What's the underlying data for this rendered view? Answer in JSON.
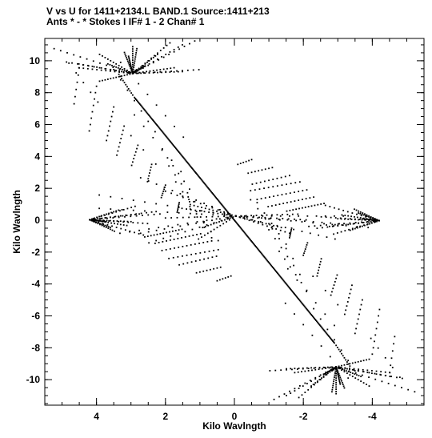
{
  "chart_data": {
    "type": "scatter",
    "title_line1": "V vs U for 1411+2134.L BAND.1   Source:1411+213",
    "title_line2": "Ants * - *     Stokes I   IF# 1 - 2   Chan# 1",
    "xlabel": "Kilo Wavlngth",
    "ylabel": "Kilo Wavlngth",
    "xlim": [
      5.5,
      -5.5
    ],
    "ylim": [
      -11.6,
      11.4
    ],
    "x_ticks": [
      4,
      2,
      0,
      -2,
      -4
    ],
    "x_tick_labels": [
      "4",
      "2",
      "0",
      "-2",
      "-4"
    ],
    "y_ticks": [
      10,
      8,
      6,
      4,
      2,
      0,
      -2,
      -4,
      -6,
      -8,
      -10
    ],
    "y_tick_labels": [
      "10",
      "8",
      "6",
      "4",
      "2",
      "0",
      "-2",
      "-4",
      "-6",
      "-8",
      "-10"
    ],
    "x_minor_step": 0.5,
    "y_minor_step": 0.5,
    "grid": false,
    "marker_color": "#000000",
    "tracks": [
      {
        "u0": -0.04,
        "v0": 0.26,
        "du": 0.17,
        "dv": -0.01,
        "n": 13
      },
      {
        "u0": -0.04,
        "v0": 0.26,
        "du": 0.11,
        "dv": 0.06,
        "n": 13
      },
      {
        "u0": -0.04,
        "v0": 0.26,
        "du": 0.08,
        "dv": -0.06,
        "n": 13
      },
      {
        "u0": -0.04,
        "v0": 0.26,
        "du": 0.33,
        "dv": 0.04,
        "n": 13
      },
      {
        "u0": -0.04,
        "v0": 0.26,
        "du": 0.23,
        "dv": 0.2,
        "n": 13
      },
      {
        "u0": -0.04,
        "v0": 0.26,
        "du": 0.21,
        "dv": -0.14,
        "n": 13
      },
      {
        "u0": -0.04,
        "v0": 0.26,
        "du": -0.25,
        "dv": -0.04,
        "n": 13
      },
      {
        "u0": -0.04,
        "v0": 0.26,
        "du": -0.17,
        "dv": -0.02,
        "n": 13
      },
      {
        "u0": -0.04,
        "v0": 0.26,
        "du": -0.11,
        "dv": -0.06,
        "n": 13
      },
      {
        "u0": -0.04,
        "v0": 0.26,
        "du": 0.17,
        "dv": 0.13,
        "n": 13
      },
      {
        "u0": -0.04,
        "v0": 0.26,
        "du": -0.13,
        "dv": -0.09,
        "n": 13
      },
      {
        "u0": -0.04,
        "v0": 0.26,
        "du": 0.13,
        "dv": 0.04,
        "n": 13
      },
      {
        "u0": -0.04,
        "v0": 0.26,
        "du": -0.15,
        "dv": 0.01,
        "n": 13
      },
      {
        "u0": -0.04,
        "v0": 0.26,
        "du": 0.33,
        "dv": 0.11,
        "n": 13
      },
      {
        "u0": -0.04,
        "v0": 0.26,
        "du": -0.32,
        "dv": -0.06,
        "n": 13
      },
      {
        "u0": -0.04,
        "v0": 0.26,
        "du": -0.26,
        "dv": 0.0,
        "n": 13
      },
      {
        "u0": -0.04,
        "v0": 0.26,
        "du": 0.23,
        "dv": -0.09,
        "n": 13
      },
      {
        "u0": -0.04,
        "v0": 0.26,
        "du": 0.09,
        "dv": -0.12,
        "n": 13
      },
      {
        "u0": -0.04,
        "v0": 0.26,
        "du": 0.28,
        "dv": -0.09,
        "n": 13
      },
      {
        "u0": -0.04,
        "v0": 0.26,
        "du": -0.24,
        "dv": -0.12,
        "n": 13
      },
      {
        "u0": 2.95,
        "v0": 9.2,
        "du": -0.03,
        "dv": 0.04,
        "n": 13
      },
      {
        "u0": 2.95,
        "v0": 9.2,
        "du": 0.13,
        "dv": 0.05,
        "n": 13
      },
      {
        "u0": 2.95,
        "v0": 9.2,
        "du": -0.01,
        "dv": 0.13,
        "n": 13
      },
      {
        "u0": 2.95,
        "v0": 9.2,
        "du": 0.08,
        "dv": -0.04,
        "n": 13
      },
      {
        "u0": 2.95,
        "v0": 9.2,
        "du": 0.06,
        "dv": 0.05,
        "n": 13
      },
      {
        "u0": 2.95,
        "v0": 9.2,
        "du": -0.06,
        "dv": 0.1,
        "n": 13
      },
      {
        "u0": 2.95,
        "v0": 9.2,
        "du": -0.12,
        "dv": 0.01,
        "n": 13
      },
      {
        "u0": 2.95,
        "v0": 9.2,
        "du": 0.0,
        "dv": 0.14,
        "n": 13
      },
      {
        "u0": 2.95,
        "v0": 9.2,
        "du": -0.1,
        "dv": 0.03,
        "n": 13
      },
      {
        "u0": 2.95,
        "v0": 9.2,
        "du": 0.16,
        "dv": 0.06,
        "n": 13
      },
      {
        "u0": 2.95,
        "v0": 9.2,
        "du": -0.01,
        "dv": 0.02,
        "n": 13
      },
      {
        "u0": 2.95,
        "v0": 9.2,
        "du": 0.02,
        "dv": 0.11,
        "n": 13
      },
      {
        "u0": 2.95,
        "v0": 9.2,
        "du": -0.16,
        "dv": 0.02,
        "n": 13
      },
      {
        "u0": 2.95,
        "v0": 9.2,
        "du": 0.01,
        "dv": 0.09,
        "n": 13
      },
      {
        "u0": 2.95,
        "v0": 9.2,
        "du": 0.08,
        "dv": 0.1,
        "n": 13
      },
      {
        "u0": 2.95,
        "v0": 9.2,
        "du": 0.19,
        "dv": 0.13,
        "n": 13
      },
      {
        "u0": 2.95,
        "v0": 9.2,
        "du": -0.15,
        "dv": 0.17,
        "n": 13
      },
      {
        "u0": 2.95,
        "v0": 9.2,
        "du": -0.09,
        "dv": 0.16,
        "n": 13
      },
      {
        "u0": 2.95,
        "v0": 9.2,
        "du": 0.13,
        "dv": 0.03,
        "n": 13
      },
      {
        "u0": 2.95,
        "v0": 9.2,
        "du": -0.12,
        "dv": 0.15,
        "n": 13
      },
      {
        "u0": -2.95,
        "v0": -9.2,
        "du": 0.03,
        "dv": -0.04,
        "n": 13
      },
      {
        "u0": -2.95,
        "v0": -9.2,
        "du": -0.13,
        "dv": -0.05,
        "n": 13
      },
      {
        "u0": -2.95,
        "v0": -9.2,
        "du": 0.01,
        "dv": -0.13,
        "n": 13
      },
      {
        "u0": -2.95,
        "v0": -9.2,
        "du": -0.08,
        "dv": 0.04,
        "n": 13
      },
      {
        "u0": -2.95,
        "v0": -9.2,
        "du": -0.06,
        "dv": -0.05,
        "n": 13
      },
      {
        "u0": -2.95,
        "v0": -9.2,
        "du": 0.06,
        "dv": -0.1,
        "n": 13
      },
      {
        "u0": -2.95,
        "v0": -9.2,
        "du": 0.12,
        "dv": -0.01,
        "n": 13
      },
      {
        "u0": -2.95,
        "v0": -9.2,
        "du": 0.0,
        "dv": -0.14,
        "n": 13
      },
      {
        "u0": -2.95,
        "v0": -9.2,
        "du": 0.1,
        "dv": -0.03,
        "n": 13
      },
      {
        "u0": -2.95,
        "v0": -9.2,
        "du": -0.16,
        "dv": -0.06,
        "n": 13
      },
      {
        "u0": -2.95,
        "v0": -9.2,
        "du": 0.01,
        "dv": -0.02,
        "n": 13
      },
      {
        "u0": -2.95,
        "v0": -9.2,
        "du": -0.02,
        "dv": -0.11,
        "n": 13
      },
      {
        "u0": -2.95,
        "v0": -9.2,
        "du": 0.16,
        "dv": -0.02,
        "n": 13
      },
      {
        "u0": -2.95,
        "v0": -9.2,
        "du": -0.01,
        "dv": -0.09,
        "n": 13
      },
      {
        "u0": -2.95,
        "v0": -9.2,
        "du": -0.08,
        "dv": -0.1,
        "n": 13
      },
      {
        "u0": -2.95,
        "v0": -9.2,
        "du": -0.19,
        "dv": -0.13,
        "n": 13
      },
      {
        "u0": -2.95,
        "v0": -9.2,
        "du": 0.15,
        "dv": -0.17,
        "n": 13
      },
      {
        "u0": -2.95,
        "v0": -9.2,
        "du": 0.09,
        "dv": -0.16,
        "n": 13
      },
      {
        "u0": -2.95,
        "v0": -9.2,
        "du": -0.13,
        "dv": -0.03,
        "n": 13
      },
      {
        "u0": -2.95,
        "v0": -9.2,
        "du": 0.12,
        "dv": -0.15,
        "n": 13
      },
      {
        "u0": 4.2,
        "v0": 0.03,
        "du": -0.1,
        "dv": -0.01,
        "n": 13
      },
      {
        "u0": 4.2,
        "v0": 0.03,
        "du": -0.06,
        "dv": -0.06,
        "n": 13
      },
      {
        "u0": 4.2,
        "v0": 0.03,
        "du": -0.12,
        "dv": 0.03,
        "n": 13
      },
      {
        "u0": 4.2,
        "v0": 0.03,
        "du": -0.05,
        "dv": -0.04,
        "n": 13
      },
      {
        "u0": 4.2,
        "v0": 0.03,
        "du": -0.14,
        "dv": -0.02,
        "n": 13
      },
      {
        "u0": 4.2,
        "v0": 0.03,
        "du": -0.11,
        "dv": 0.07,
        "n": 13
      },
      {
        "u0": 4.2,
        "v0": 0.03,
        "du": -0.17,
        "dv": 0.03,
        "n": 13
      },
      {
        "u0": 4.2,
        "v0": 0.03,
        "du": -0.09,
        "dv": -0.03,
        "n": 13
      },
      {
        "u0": 4.2,
        "v0": 0.03,
        "du": -0.13,
        "dv": -0.08,
        "n": 13
      },
      {
        "u0": 4.2,
        "v0": 0.03,
        "du": -0.07,
        "dv": 0.05,
        "n": 13
      },
      {
        "u0": 4.2,
        "v0": 0.03,
        "du": -0.15,
        "dv": 0.04,
        "n": 13
      },
      {
        "u0": 4.2,
        "v0": 0.03,
        "du": -0.04,
        "dv": -0.01,
        "n": 13
      },
      {
        "u0": -4.2,
        "v0": -0.03,
        "du": 0.1,
        "dv": 0.01,
        "n": 13
      },
      {
        "u0": -4.2,
        "v0": -0.03,
        "du": 0.06,
        "dv": 0.06,
        "n": 13
      },
      {
        "u0": -4.2,
        "v0": -0.03,
        "du": 0.12,
        "dv": -0.03,
        "n": 13
      },
      {
        "u0": -4.2,
        "v0": -0.03,
        "du": 0.05,
        "dv": 0.04,
        "n": 13
      },
      {
        "u0": -4.2,
        "v0": -0.03,
        "du": 0.14,
        "dv": 0.02,
        "n": 13
      },
      {
        "u0": -4.2,
        "v0": -0.03,
        "du": 0.11,
        "dv": -0.07,
        "n": 13
      },
      {
        "u0": -4.2,
        "v0": -0.03,
        "du": 0.17,
        "dv": -0.03,
        "n": 13
      },
      {
        "u0": -4.2,
        "v0": -0.03,
        "du": 0.09,
        "dv": 0.03,
        "n": 13
      },
      {
        "u0": -4.2,
        "v0": -0.03,
        "du": 0.13,
        "dv": 0.08,
        "n": 13
      },
      {
        "u0": -4.2,
        "v0": -0.03,
        "du": 0.07,
        "dv": -0.05,
        "n": 13
      },
      {
        "u0": -4.2,
        "v0": -0.03,
        "du": 0.15,
        "dv": -0.04,
        "n": 13
      },
      {
        "u0": -4.2,
        "v0": -0.03,
        "du": 0.04,
        "dv": 0.01,
        "n": 13
      },
      {
        "u0": 3.3,
        "v0": 9.9,
        "du": -0.26,
        "dv": -0.67,
        "n": 8
      },
      {
        "u0": 4.8,
        "v0": 9.85,
        "du": -0.21,
        "dv": -0.61,
        "n": 5
      },
      {
        "u0": 3.5,
        "v0": 9.45,
        "du": -0.2,
        "dv": -0.65,
        "n": 7
      },
      {
        "u0": 2.9,
        "v0": 6.6,
        "du": -0.27,
        "dv": -0.71,
        "n": 6
      },
      {
        "u0": 3.0,
        "v0": 5.3,
        "du": -0.36,
        "dv": -0.89,
        "n": 3
      },
      {
        "u0": 2.1,
        "v0": 4.4,
        "du": -0.16,
        "dv": -0.49,
        "n": 6
      },
      {
        "u0": 1.9,
        "v0": 3.4,
        "du": -0.18,
        "dv": -0.56,
        "n": 6
      },
      {
        "u0": 1.7,
        "v0": 2.4,
        "du": -0.2,
        "dv": -0.62,
        "n": 5
      },
      {
        "u0": 1.5,
        "v0": 1.5,
        "du": -0.21,
        "dv": -0.65,
        "n": 5
      },
      {
        "u0": 1.1,
        "v0": 0.4,
        "du": -0.21,
        "dv": -0.56,
        "n": 4
      },
      {
        "u0": -3.3,
        "v0": -9.9,
        "du": 0.26,
        "dv": 0.67,
        "n": 8
      },
      {
        "u0": -4.8,
        "v0": -9.85,
        "du": 0.21,
        "dv": 0.61,
        "n": 5
      },
      {
        "u0": -3.5,
        "v0": -9.45,
        "du": 0.2,
        "dv": 0.65,
        "n": 7
      },
      {
        "u0": -2.9,
        "v0": -6.6,
        "du": 0.27,
        "dv": 0.71,
        "n": 6
      },
      {
        "u0": -3.0,
        "v0": -5.3,
        "du": 0.36,
        "dv": 0.89,
        "n": 3
      },
      {
        "u0": -2.1,
        "v0": -4.4,
        "du": 0.16,
        "dv": 0.49,
        "n": 6
      },
      {
        "u0": -1.9,
        "v0": -3.4,
        "du": 0.18,
        "dv": 0.56,
        "n": 6
      },
      {
        "u0": -1.7,
        "v0": -2.4,
        "du": 0.2,
        "dv": 0.62,
        "n": 5
      },
      {
        "u0": -1.5,
        "v0": -1.5,
        "du": 0.21,
        "dv": 0.65,
        "n": 5
      },
      {
        "u0": -1.1,
        "v0": -0.4,
        "du": 0.21,
        "dv": 0.56,
        "n": 4
      },
      {
        "u0": 4.5,
        "v0": 9.55,
        "du": 0.03,
        "dv": -0.45,
        "n": 6
      },
      {
        "u0": 4.0,
        "v0": 8.4,
        "du": 0.03,
        "dv": -0.4,
        "n": 8
      },
      {
        "u0": 3.5,
        "v0": 7.1,
        "du": 0.03,
        "dv": -0.3,
        "n": 8
      },
      {
        "u0": 3.2,
        "v0": 5.9,
        "du": 0.03,
        "dv": -0.26,
        "n": 8
      },
      {
        "u0": 2.8,
        "v0": 4.7,
        "du": 0.03,
        "dv": -0.21,
        "n": 7
      },
      {
        "u0": 2.4,
        "v0": 3.5,
        "du": 0.02,
        "dv": -0.18,
        "n": 7
      },
      {
        "u0": 2.0,
        "v0": 2.2,
        "du": 0.02,
        "dv": -0.13,
        "n": 7
      },
      {
        "u0": 1.6,
        "v0": 1.1,
        "du": 0.01,
        "dv": -0.1,
        "n": 7
      },
      {
        "u0": -4.5,
        "v0": -9.55,
        "du": -0.03,
        "dv": 0.45,
        "n": 6
      },
      {
        "u0": -4.0,
        "v0": -8.4,
        "du": -0.03,
        "dv": 0.4,
        "n": 8
      },
      {
        "u0": -3.5,
        "v0": -7.1,
        "du": -0.03,
        "dv": 0.3,
        "n": 8
      },
      {
        "u0": -3.2,
        "v0": -5.9,
        "du": -0.03,
        "dv": 0.26,
        "n": 8
      },
      {
        "u0": -2.8,
        "v0": -4.7,
        "du": -0.03,
        "dv": 0.21,
        "n": 7
      },
      {
        "u0": -2.4,
        "v0": -3.5,
        "du": -0.02,
        "dv": 0.18,
        "n": 7
      },
      {
        "u0": -2.0,
        "v0": -2.2,
        "du": -0.02,
        "dv": 0.13,
        "n": 7
      },
      {
        "u0": -1.6,
        "v0": -1.1,
        "du": -0.01,
        "dv": 0.1,
        "n": 7
      },
      {
        "u0": 2.6,
        "v0": -1.05,
        "du": -0.09,
        "dv": 0.04,
        "n": 13
      },
      {
        "u0": 2.3,
        "v0": -1.45,
        "du": -0.11,
        "dv": 0.05,
        "n": 13
      },
      {
        "u0": 2.1,
        "v0": -1.9,
        "du": -0.12,
        "dv": 0.05,
        "n": 13
      },
      {
        "u0": 1.9,
        "v0": -2.4,
        "du": -0.13,
        "dv": 0.05,
        "n": 12
      },
      {
        "u0": 1.6,
        "v0": -2.8,
        "du": -0.12,
        "dv": 0.06,
        "n": 10
      },
      {
        "u0": 1.1,
        "v0": -3.3,
        "du": -0.1,
        "dv": 0.05,
        "n": 8
      },
      {
        "u0": 0.5,
        "v0": -3.8,
        "du": -0.08,
        "dv": 0.06,
        "n": 6
      },
      {
        "u0": -2.6,
        "v0": 1.05,
        "du": 0.09,
        "dv": -0.04,
        "n": 13
      },
      {
        "u0": -2.3,
        "v0": 1.45,
        "du": 0.11,
        "dv": -0.05,
        "n": 13
      },
      {
        "u0": -2.1,
        "v0": 1.9,
        "du": 0.12,
        "dv": -0.05,
        "n": 13
      },
      {
        "u0": -1.9,
        "v0": 2.4,
        "du": 0.13,
        "dv": -0.05,
        "n": 12
      },
      {
        "u0": -1.6,
        "v0": 2.8,
        "du": 0.12,
        "dv": -0.06,
        "n": 10
      },
      {
        "u0": -1.1,
        "v0": 3.3,
        "du": 0.1,
        "dv": -0.05,
        "n": 8
      },
      {
        "u0": -0.5,
        "v0": 3.8,
        "du": 0.08,
        "dv": -0.06,
        "n": 6
      }
    ],
    "diagonal": {
      "u_start": 2.9,
      "v_start": 7.7,
      "u_end": -2.9,
      "v_end": -7.7,
      "n": 260
    },
    "diagonal_tails": [
      {
        "u_start": -2.95,
        "v_start": -7.85,
        "u_end": -3.35,
        "v_end": -9.15,
        "n": 10
      },
      {
        "u_start": 2.95,
        "v_start": 7.85,
        "u_end": 3.35,
        "v_end": 9.15,
        "n": 10
      }
    ]
  }
}
